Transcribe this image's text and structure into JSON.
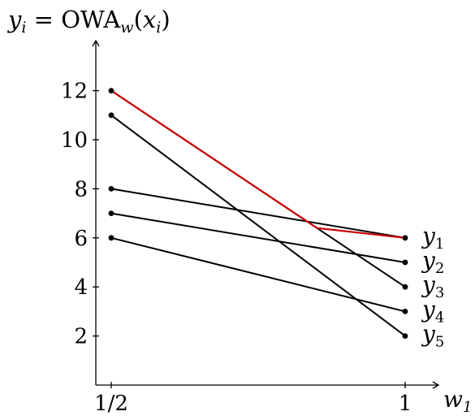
{
  "chart_data": {
    "type": "line",
    "ylabel": {
      "lhs": "y",
      "lhs_sub": "i",
      "eq": " = OWA",
      "op_sub": "w",
      "arg_open": "(",
      "arg": "x",
      "arg_sub": "i",
      "arg_close": ")"
    },
    "xlabel": {
      "main": "w",
      "sub": "1"
    },
    "x_categories": [
      "1/2",
      "1"
    ],
    "x_values": [
      0.5,
      1
    ],
    "xlim": [
      0.5,
      1
    ],
    "ylim": [
      0,
      14
    ],
    "yticks": [
      2,
      4,
      6,
      8,
      10,
      12
    ],
    "ytick_labels": [
      "2",
      "4",
      "6",
      "8",
      "10",
      "12"
    ],
    "series": [
      {
        "name": "y",
        "sub": "1",
        "x": [
          0.5,
          1
        ],
        "y": [
          8,
          6
        ]
      },
      {
        "name": "y",
        "sub": "2",
        "x": [
          0.5,
          1
        ],
        "y": [
          7,
          5
        ]
      },
      {
        "name": "y",
        "sub": "3",
        "x": [
          0.5,
          1
        ],
        "y": [
          12,
          4
        ]
      },
      {
        "name": "y",
        "sub": "4",
        "x": [
          0.5,
          1
        ],
        "y": [
          6,
          3
        ]
      },
      {
        "name": "y",
        "sub": "5",
        "x": [
          0.5,
          1
        ],
        "y": [
          11,
          2
        ]
      }
    ],
    "series_color": "#000000",
    "highlight": {
      "color": "#cc0000",
      "description_points": [
        [
          0.5,
          12
        ],
        [
          0.85,
          6.4
        ],
        [
          1,
          6
        ]
      ]
    }
  }
}
